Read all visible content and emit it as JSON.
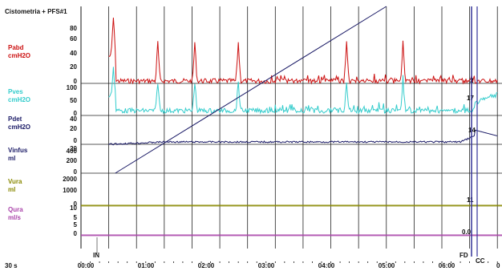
{
  "title": "Cistometria + PFS#1",
  "chart_data": {
    "type": "line",
    "title": "Cistometria + PFS#1",
    "x_unit_label": "30 s",
    "x_ticks": [
      "00:00",
      "01:00",
      "02:00",
      "03:00",
      "04:00",
      "05:00",
      "06:00"
    ],
    "x_end_label": "0",
    "grid": true,
    "channels": [
      {
        "name": "Pabd",
        "unit": "cmH2O",
        "ticks": [
          "80",
          "60",
          "40",
          "20",
          "0"
        ],
        "color": "#cc1111",
        "end_value": "2"
      },
      {
        "name": "Pves",
        "unit": "cmH2O",
        "ticks": [
          "100",
          "50",
          "0"
        ],
        "color": "#33cccc",
        "end_value": "17"
      },
      {
        "name": "Pdet",
        "unit": "cmH2O",
        "ticks": [
          "40",
          "20",
          "0",
          "20"
        ],
        "color": "#1a1a66",
        "end_value": "14"
      },
      {
        "name": "Vinfus",
        "unit": "ml",
        "ticks": [
          "400",
          "200",
          "0"
        ],
        "color": "#1a1a66",
        "end_value": ""
      },
      {
        "name": "Vura",
        "unit": "ml",
        "ticks": [
          "2000",
          "1000",
          "0"
        ],
        "color": "#888800",
        "end_value": "11"
      },
      {
        "name": "Qura",
        "unit": "ml/s",
        "ticks": [
          "5",
          "10",
          "5",
          "0"
        ],
        "color": "#aa44aa",
        "end_value": "0.0"
      }
    ],
    "events": [
      {
        "label": "IN",
        "time_s": 5
      },
      {
        "label": "FD",
        "time_s": 398
      },
      {
        "label": "CC",
        "time_s": 405
      }
    ],
    "x_range_s": [
      -30,
      425
    ]
  }
}
